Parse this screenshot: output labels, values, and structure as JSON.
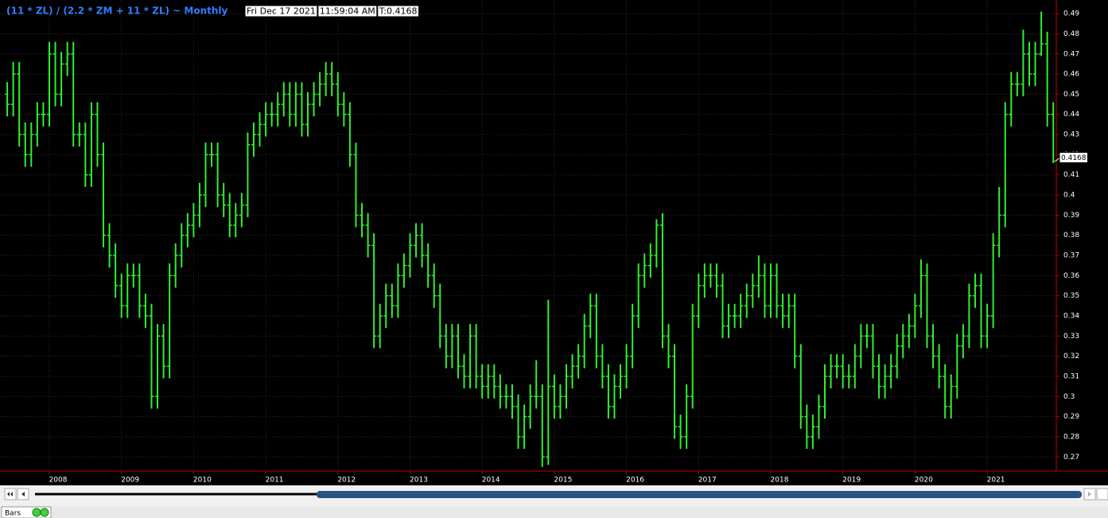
{
  "header": {
    "title": "(11 * ZL) / (2.2 * ZM + 11 * ZL) ~ Monthly",
    "info": [
      "Fri Dec 17 2021",
      "11:59:04 AM",
      "T:0.4168"
    ]
  },
  "footer": {
    "tab": "Bars"
  },
  "chart_data": {
    "type": "ohlc",
    "color": "#2ef02e",
    "grid": true,
    "categories": [
      null,
      null,
      null,
      null,
      null,
      null,
      null,
      "2008",
      null,
      null,
      null,
      null,
      null,
      null,
      null,
      null,
      null,
      null,
      null,
      "2009",
      null,
      null,
      null,
      null,
      null,
      null,
      null,
      null,
      null,
      null,
      null,
      "2010",
      null,
      null,
      null,
      null,
      null,
      null,
      null,
      null,
      null,
      null,
      null,
      "2011",
      null,
      null,
      null,
      null,
      null,
      null,
      null,
      null,
      null,
      null,
      null,
      "2012",
      null,
      null,
      null,
      null,
      null,
      null,
      null,
      null,
      null,
      null,
      null,
      "2013",
      null,
      null,
      null,
      null,
      null,
      null,
      null,
      null,
      null,
      null,
      null,
      "2014",
      null,
      null,
      null,
      null,
      null,
      null,
      null,
      null,
      null,
      null,
      null,
      "2015",
      null,
      null,
      null,
      null,
      null,
      null,
      null,
      null,
      null,
      null,
      null,
      "2016",
      null,
      null,
      null,
      null,
      null,
      null,
      null,
      null,
      null,
      null,
      null,
      "2017",
      null,
      null,
      null,
      null,
      null,
      null,
      null,
      null,
      null,
      null,
      null,
      "2018",
      null,
      null,
      null,
      null,
      null,
      null,
      null,
      null,
      null,
      null,
      null,
      "2019",
      null,
      null,
      null,
      null,
      null,
      null,
      null,
      null,
      null,
      null,
      null,
      "2020",
      null,
      null,
      null,
      null,
      null,
      null,
      null,
      null,
      null,
      null,
      null,
      "2021",
      null,
      null,
      null,
      null,
      null,
      null,
      null,
      null,
      null,
      null,
      null
    ],
    "open": [
      0.45,
      0.445,
      0.46,
      0.43,
      0.42,
      0.43,
      0.44,
      0.44,
      0.47,
      0.45,
      0.465,
      0.47,
      0.43,
      0.43,
      0.41,
      0.44,
      0.42,
      0.38,
      0.37,
      0.355,
      0.345,
      0.36,
      0.36,
      0.345,
      0.34,
      0.3,
      0.33,
      0.315,
      0.36,
      0.37,
      0.38,
      0.385,
      0.39,
      0.4,
      0.42,
      0.42,
      0.4,
      0.395,
      0.385,
      0.39,
      0.395,
      0.425,
      0.43,
      0.435,
      0.44,
      0.44,
      0.445,
      0.45,
      0.44,
      0.45,
      0.435,
      0.445,
      0.45,
      0.455,
      0.46,
      0.455,
      0.445,
      0.44,
      0.42,
      0.39,
      0.385,
      0.375,
      0.33,
      0.34,
      0.35,
      0.345,
      0.36,
      0.365,
      0.375,
      0.38,
      0.37,
      0.36,
      0.35,
      0.33,
      0.32,
      0.33,
      0.315,
      0.31,
      0.33,
      0.31,
      0.305,
      0.31,
      0.305,
      0.3,
      0.3,
      0.295,
      0.28,
      0.29,
      0.3,
      0.3,
      0.27,
      0.305,
      0.295,
      0.3,
      0.31,
      0.315,
      0.32,
      0.335,
      0.345,
      0.32,
      0.31,
      0.295,
      0.305,
      0.31,
      0.32,
      0.34,
      0.36,
      0.365,
      0.37,
      0.385,
      0.33,
      0.32,
      0.285,
      0.28,
      0.3,
      0.34,
      0.355,
      0.36,
      0.36,
      0.355,
      0.335,
      0.34,
      0.34,
      0.345,
      0.35,
      0.355,
      0.36,
      0.345,
      0.36,
      0.345,
      0.34,
      0.345,
      0.32,
      0.29,
      0.28,
      0.285,
      0.295,
      0.31,
      0.315,
      0.315,
      0.31,
      0.31,
      0.32,
      0.33,
      0.33,
      0.315,
      0.305,
      0.31,
      0.315,
      0.325,
      0.33,
      0.335,
      0.345,
      0.36,
      0.33,
      0.32,
      0.31,
      0.295,
      0.305,
      0.325,
      0.33,
      0.35,
      0.355,
      0.33,
      0.34,
      0.375,
      0.39,
      0.44,
      0.455,
      0.455,
      0.47,
      0.46,
      0.47,
      0.475,
      0.44
    ],
    "high": [
      0.456,
      0.466,
      0.466,
      0.436,
      0.436,
      0.446,
      0.446,
      0.476,
      0.476,
      0.471,
      0.476,
      0.476,
      0.436,
      0.436,
      0.446,
      0.446,
      0.426,
      0.386,
      0.376,
      0.361,
      0.366,
      0.366,
      0.366,
      0.351,
      0.346,
      0.336,
      0.336,
      0.366,
      0.376,
      0.386,
      0.391,
      0.396,
      0.406,
      0.426,
      0.426,
      0.426,
      0.406,
      0.401,
      0.396,
      0.401,
      0.431,
      0.436,
      0.441,
      0.446,
      0.446,
      0.451,
      0.456,
      0.456,
      0.456,
      0.456,
      0.451,
      0.456,
      0.461,
      0.466,
      0.466,
      0.461,
      0.451,
      0.446,
      0.426,
      0.396,
      0.391,
      0.381,
      0.346,
      0.356,
      0.356,
      0.366,
      0.371,
      0.381,
      0.386,
      0.386,
      0.376,
      0.366,
      0.356,
      0.336,
      0.336,
      0.336,
      0.321,
      0.336,
      0.336,
      0.316,
      0.316,
      0.316,
      0.311,
      0.306,
      0.306,
      0.301,
      0.296,
      0.306,
      0.318,
      0.306,
      0.348,
      0.311,
      0.306,
      0.316,
      0.321,
      0.326,
      0.341,
      0.351,
      0.351,
      0.326,
      0.316,
      0.311,
      0.316,
      0.326,
      0.346,
      0.366,
      0.371,
      0.376,
      0.388,
      0.391,
      0.336,
      0.326,
      0.291,
      0.306,
      0.346,
      0.361,
      0.366,
      0.366,
      0.366,
      0.361,
      0.346,
      0.346,
      0.351,
      0.356,
      0.361,
      0.37,
      0.366,
      0.366,
      0.366,
      0.351,
      0.351,
      0.351,
      0.326,
      0.296,
      0.291,
      0.301,
      0.316,
      0.321,
      0.321,
      0.321,
      0.316,
      0.326,
      0.336,
      0.336,
      0.336,
      0.321,
      0.316,
      0.321,
      0.331,
      0.336,
      0.341,
      0.351,
      0.368,
      0.366,
      0.336,
      0.326,
      0.316,
      0.311,
      0.331,
      0.336,
      0.356,
      0.361,
      0.361,
      0.346,
      0.381,
      0.404,
      0.446,
      0.461,
      0.461,
      0.482,
      0.476,
      0.476,
      0.491,
      0.481,
      0.446
    ],
    "low": [
      0.439,
      0.439,
      0.424,
      0.414,
      0.414,
      0.424,
      0.434,
      0.434,
      0.444,
      0.444,
      0.459,
      0.424,
      0.424,
      0.404,
      0.404,
      0.414,
      0.374,
      0.364,
      0.349,
      0.339,
      0.339,
      0.354,
      0.339,
      0.334,
      0.294,
      0.294,
      0.309,
      0.309,
      0.354,
      0.364,
      0.374,
      0.379,
      0.384,
      0.394,
      0.414,
      0.394,
      0.389,
      0.379,
      0.379,
      0.384,
      0.389,
      0.419,
      0.424,
      0.429,
      0.434,
      0.434,
      0.439,
      0.434,
      0.434,
      0.429,
      0.429,
      0.439,
      0.444,
      0.449,
      0.449,
      0.439,
      0.434,
      0.414,
      0.384,
      0.379,
      0.369,
      0.324,
      0.324,
      0.334,
      0.339,
      0.339,
      0.354,
      0.359,
      0.369,
      0.364,
      0.354,
      0.344,
      0.324,
      0.314,
      0.314,
      0.309,
      0.304,
      0.304,
      0.304,
      0.299,
      0.299,
      0.299,
      0.294,
      0.294,
      0.289,
      0.274,
      0.274,
      0.284,
      0.294,
      0.265,
      0.266,
      0.289,
      0.289,
      0.294,
      0.304,
      0.309,
      0.314,
      0.329,
      0.314,
      0.304,
      0.289,
      0.289,
      0.299,
      0.304,
      0.314,
      0.334,
      0.354,
      0.359,
      0.364,
      0.324,
      0.314,
      0.279,
      0.274,
      0.274,
      0.294,
      0.334,
      0.349,
      0.354,
      0.349,
      0.329,
      0.329,
      0.334,
      0.334,
      0.339,
      0.344,
      0.349,
      0.339,
      0.339,
      0.339,
      0.334,
      0.334,
      0.314,
      0.284,
      0.274,
      0.274,
      0.279,
      0.289,
      0.304,
      0.309,
      0.304,
      0.304,
      0.304,
      0.314,
      0.324,
      0.309,
      0.299,
      0.299,
      0.304,
      0.309,
      0.319,
      0.324,
      0.329,
      0.339,
      0.324,
      0.314,
      0.304,
      0.289,
      0.289,
      0.299,
      0.319,
      0.324,
      0.344,
      0.324,
      0.324,
      0.334,
      0.369,
      0.384,
      0.434,
      0.449,
      0.449,
      0.454,
      0.454,
      0.469,
      0.434,
      0.4158
    ],
    "close": [
      0.445,
      0.46,
      0.43,
      0.42,
      0.43,
      0.44,
      0.44,
      0.47,
      0.45,
      0.465,
      0.47,
      0.43,
      0.43,
      0.41,
      0.44,
      0.42,
      0.38,
      0.37,
      0.355,
      0.345,
      0.36,
      0.36,
      0.345,
      0.34,
      0.3,
      0.33,
      0.315,
      0.36,
      0.37,
      0.38,
      0.385,
      0.39,
      0.4,
      0.42,
      0.42,
      0.4,
      0.395,
      0.385,
      0.39,
      0.395,
      0.425,
      0.43,
      0.435,
      0.44,
      0.44,
      0.445,
      0.45,
      0.44,
      0.45,
      0.435,
      0.445,
      0.45,
      0.455,
      0.46,
      0.455,
      0.445,
      0.44,
      0.42,
      0.39,
      0.385,
      0.375,
      0.33,
      0.34,
      0.35,
      0.345,
      0.36,
      0.365,
      0.375,
      0.38,
      0.37,
      0.36,
      0.35,
      0.33,
      0.32,
      0.33,
      0.315,
      0.31,
      0.33,
      0.31,
      0.305,
      0.31,
      0.305,
      0.3,
      0.3,
      0.295,
      0.28,
      0.29,
      0.3,
      0.3,
      0.27,
      0.305,
      0.295,
      0.3,
      0.31,
      0.315,
      0.32,
      0.335,
      0.345,
      0.32,
      0.31,
      0.295,
      0.305,
      0.31,
      0.32,
      0.34,
      0.36,
      0.365,
      0.37,
      0.385,
      0.33,
      0.32,
      0.285,
      0.28,
      0.3,
      0.34,
      0.355,
      0.36,
      0.36,
      0.355,
      0.335,
      0.34,
      0.34,
      0.345,
      0.35,
      0.355,
      0.36,
      0.345,
      0.36,
      0.345,
      0.34,
      0.345,
      0.32,
      0.29,
      0.28,
      0.285,
      0.295,
      0.31,
      0.315,
      0.315,
      0.31,
      0.31,
      0.32,
      0.33,
      0.33,
      0.315,
      0.305,
      0.31,
      0.315,
      0.325,
      0.33,
      0.335,
      0.345,
      0.36,
      0.33,
      0.32,
      0.31,
      0.295,
      0.305,
      0.325,
      0.33,
      0.35,
      0.355,
      0.33,
      0.34,
      0.375,
      0.39,
      0.44,
      0.455,
      0.455,
      0.47,
      0.46,
      0.47,
      0.475,
      0.44,
      0.4168
    ],
    "ylim": [
      0.263,
      0.4936
    ],
    "yticks": [
      0.27,
      0.28,
      0.29,
      0.3,
      0.31,
      0.32,
      0.33,
      0.34,
      0.35,
      0.36,
      0.37,
      0.38,
      0.39,
      0.4,
      0.41,
      0.42,
      0.43,
      0.44,
      0.45,
      0.46,
      0.47,
      0.48,
      0.49
    ]
  }
}
